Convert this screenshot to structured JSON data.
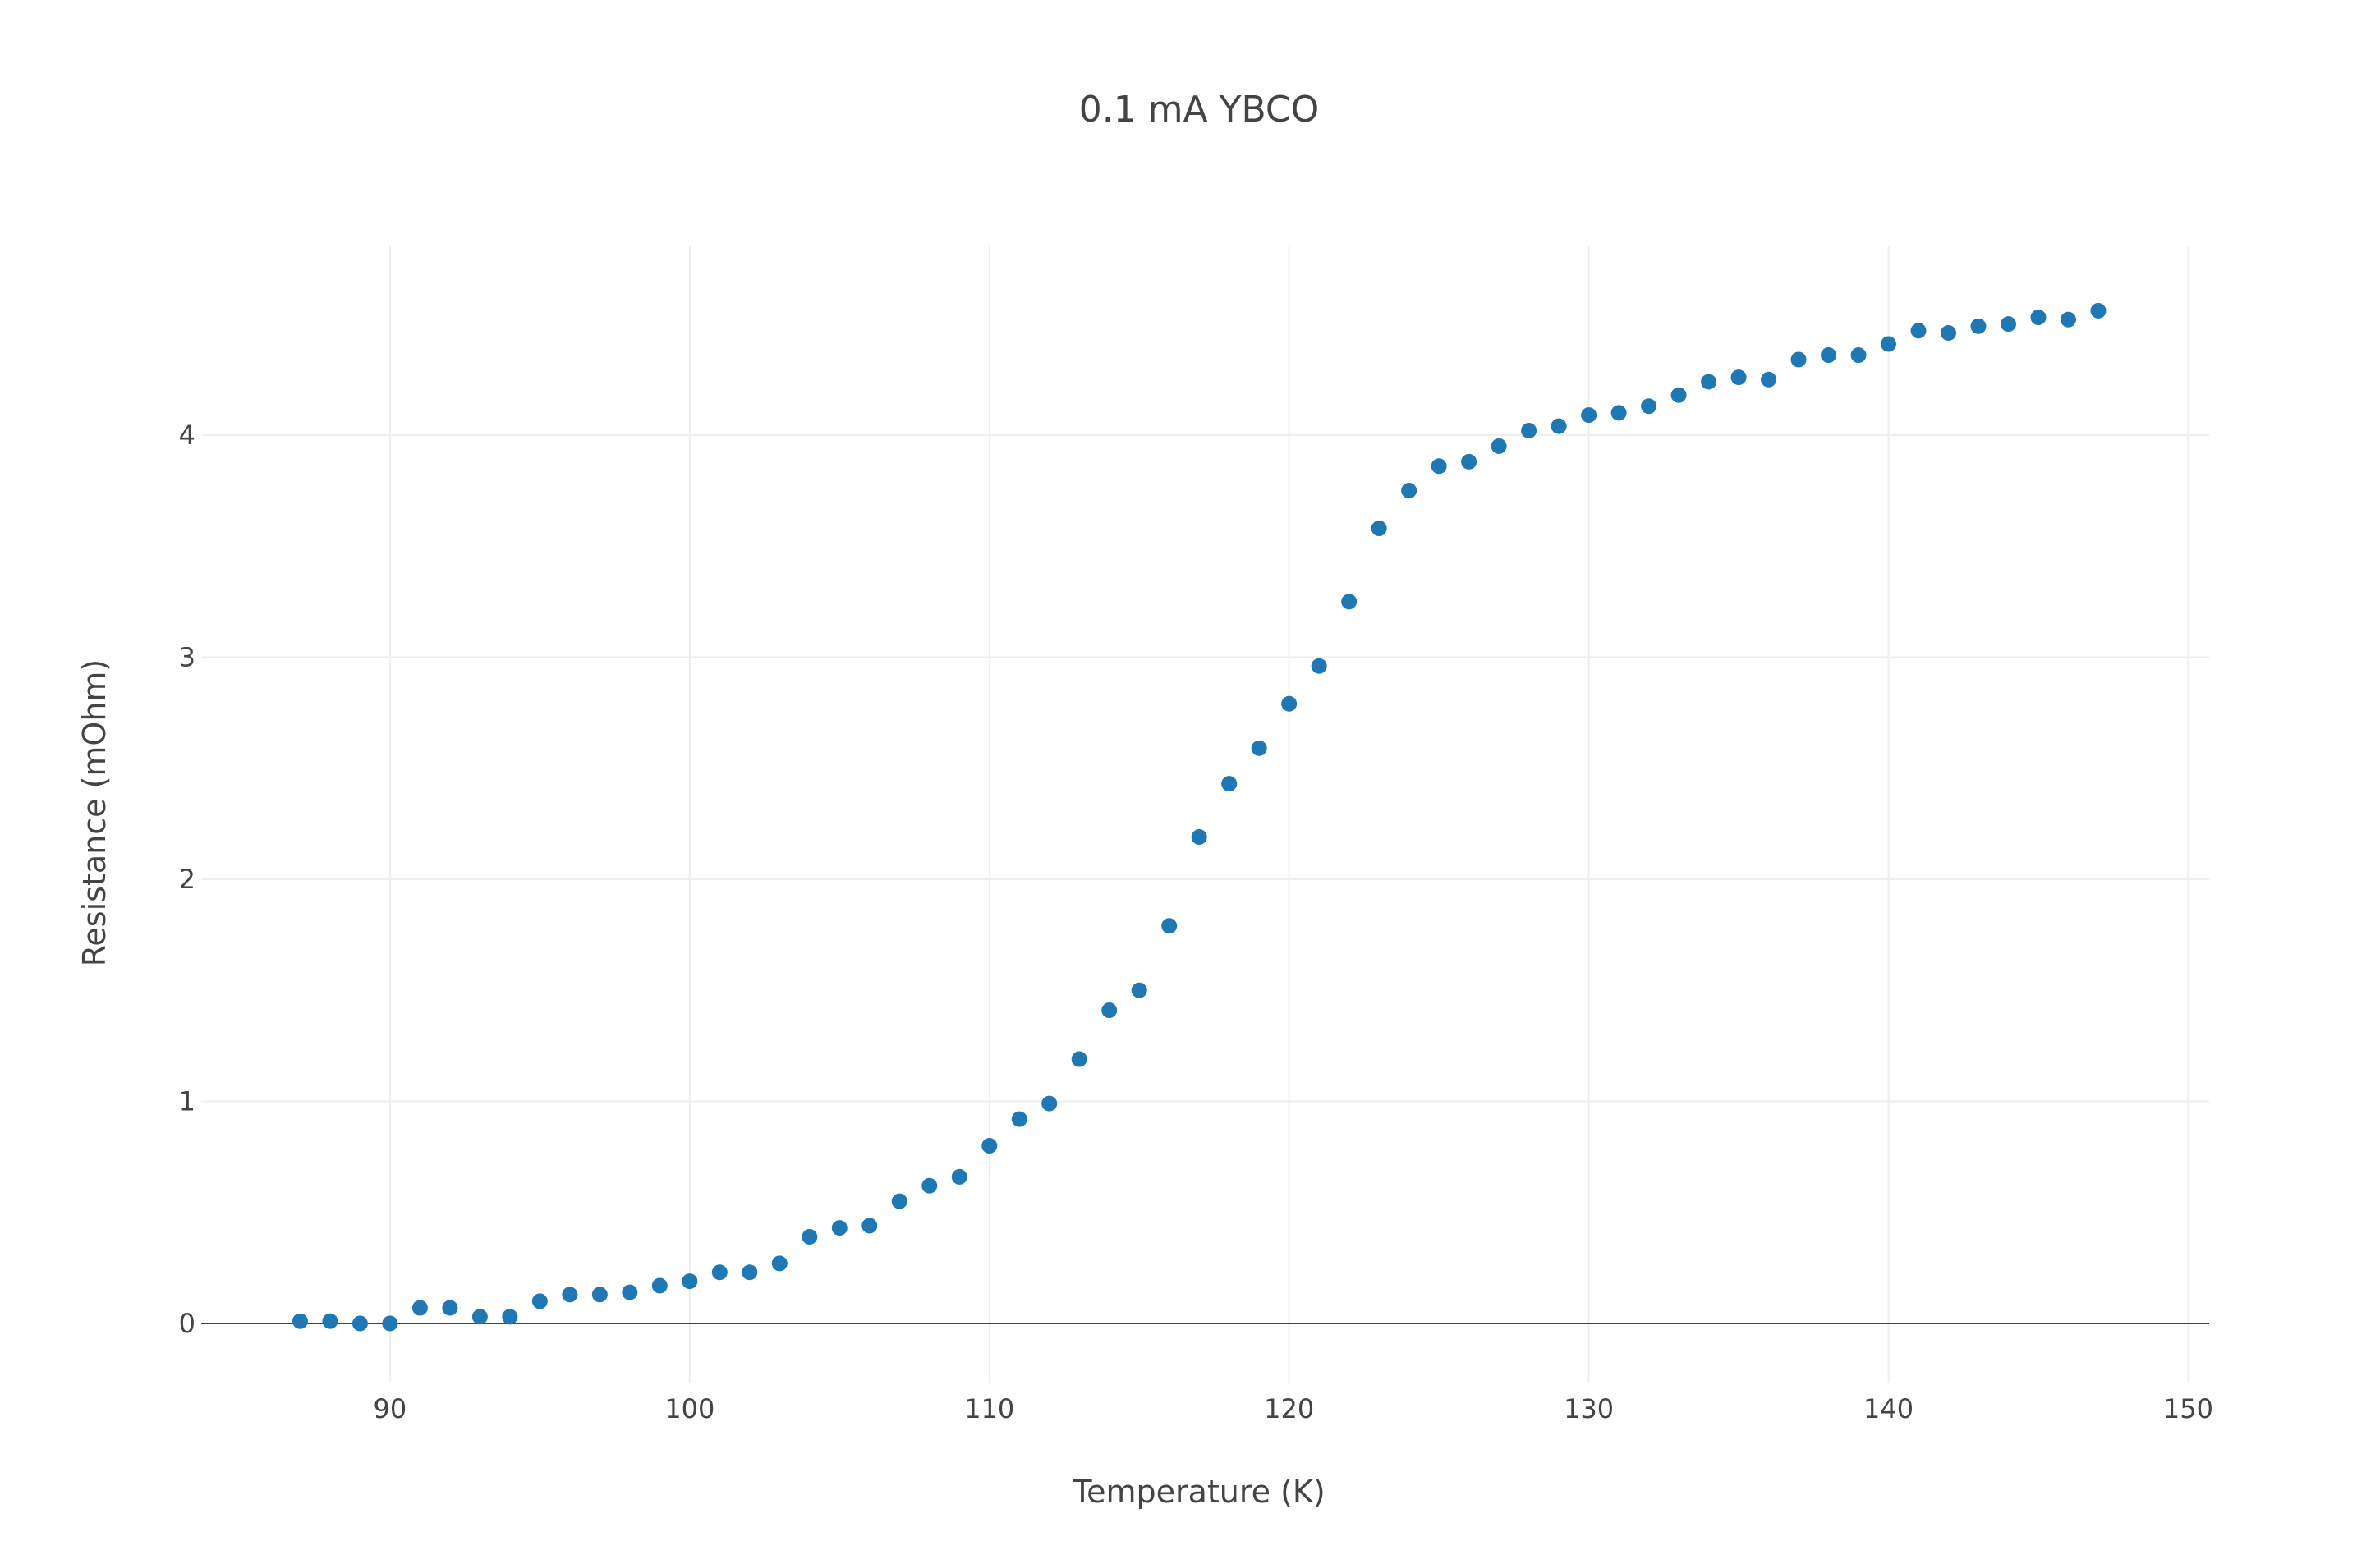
{
  "chart_data": {
    "type": "scatter",
    "title": "0.1 mA YBCO",
    "xlabel": "Temperature (K)",
    "ylabel": "Resistance (mOhm)",
    "xlim": [
      83.7,
      150.7
    ],
    "ylim": [
      -0.27,
      4.85
    ],
    "xticks": [
      90,
      100,
      110,
      120,
      130,
      140,
      150
    ],
    "yticks": [
      0,
      1,
      2,
      3,
      4
    ],
    "grid": true,
    "legend": "none",
    "marker_color": "#1f77b4",
    "series": [
      {
        "x": [
          87,
          88,
          89,
          90,
          91,
          92,
          93,
          94,
          95,
          96,
          97,
          98,
          99,
          100,
          101,
          102,
          103,
          104,
          105,
          106,
          107,
          108,
          109,
          110,
          111,
          112,
          113,
          114,
          115,
          116,
          117,
          118,
          119,
          120,
          121,
          122,
          123,
          124,
          125,
          126,
          127,
          128,
          129,
          130,
          131,
          132,
          133,
          134,
          135,
          136,
          137,
          138,
          139,
          140,
          141,
          142,
          143,
          144,
          145,
          146,
          147
        ],
        "y": [
          0.01,
          0.01,
          0.0,
          0.0,
          0.07,
          0.07,
          0.03,
          0.03,
          0.1,
          0.13,
          0.13,
          0.14,
          0.17,
          0.19,
          0.23,
          0.23,
          0.27,
          0.39,
          0.43,
          0.44,
          0.55,
          0.62,
          0.66,
          0.8,
          0.92,
          0.99,
          1.19,
          1.41,
          1.5,
          1.79,
          2.19,
          2.43,
          2.59,
          2.79,
          2.96,
          3.25,
          3.58,
          3.75,
          3.86,
          3.88,
          3.95,
          4.02,
          4.04,
          4.09,
          4.1,
          4.13,
          4.18,
          4.24,
          4.26,
          4.25,
          4.34,
          4.36,
          4.36,
          4.41,
          4.47,
          4.46,
          4.49,
          4.5,
          4.53,
          4.52,
          4.56
        ]
      }
    ]
  }
}
